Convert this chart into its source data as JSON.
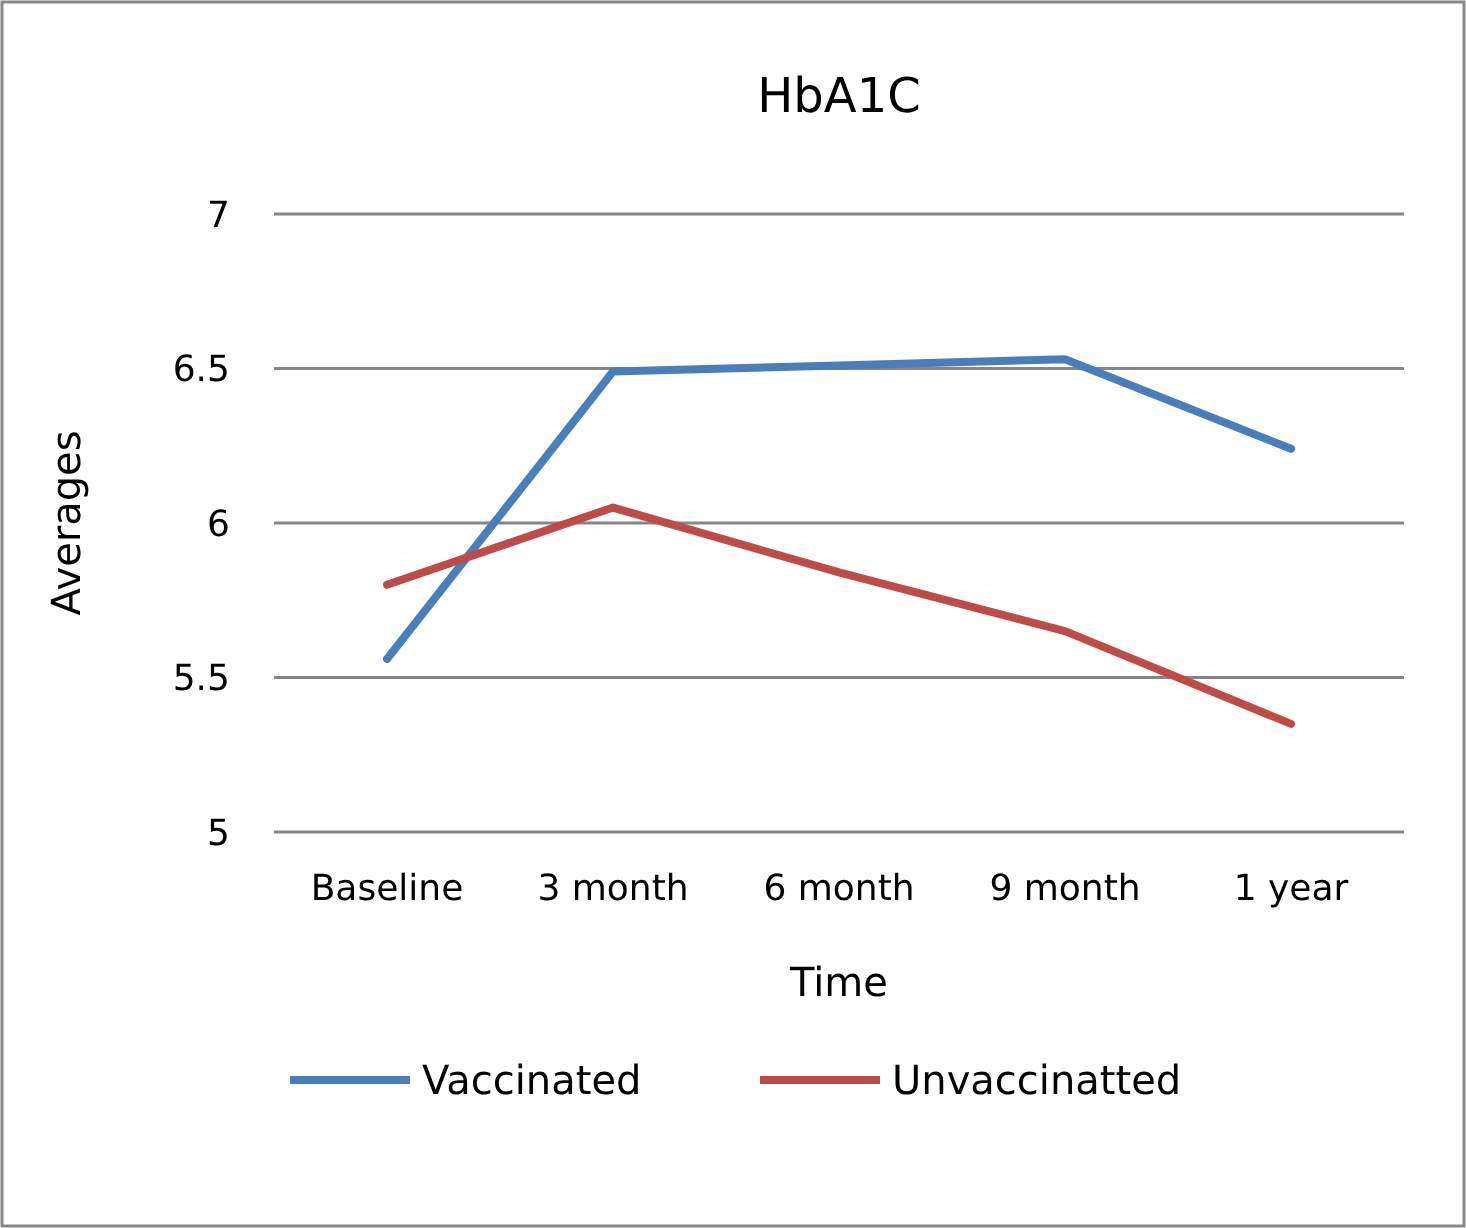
{
  "chart_data": {
    "type": "line",
    "title": "HbA1C",
    "xlabel": "Time",
    "ylabel": "Averages",
    "categories": [
      "Baseline",
      "3 month",
      "6 month",
      "9 month",
      "1 year"
    ],
    "series": [
      {
        "name": "Vaccinated",
        "color": "#4a7ebb",
        "values": [
          5.56,
          6.49,
          6.51,
          6.53,
          6.24
        ]
      },
      {
        "name": "Unvaccinatted",
        "color": "#be4b48",
        "values": [
          5.8,
          6.05,
          5.84,
          5.65,
          5.35
        ]
      }
    ],
    "ylim": [
      5,
      7
    ],
    "yticks": [
      5,
      5.5,
      6,
      6.5,
      7
    ],
    "grid": "y",
    "legend": "bottom",
    "marker": "none",
    "line_style": "solid"
  }
}
